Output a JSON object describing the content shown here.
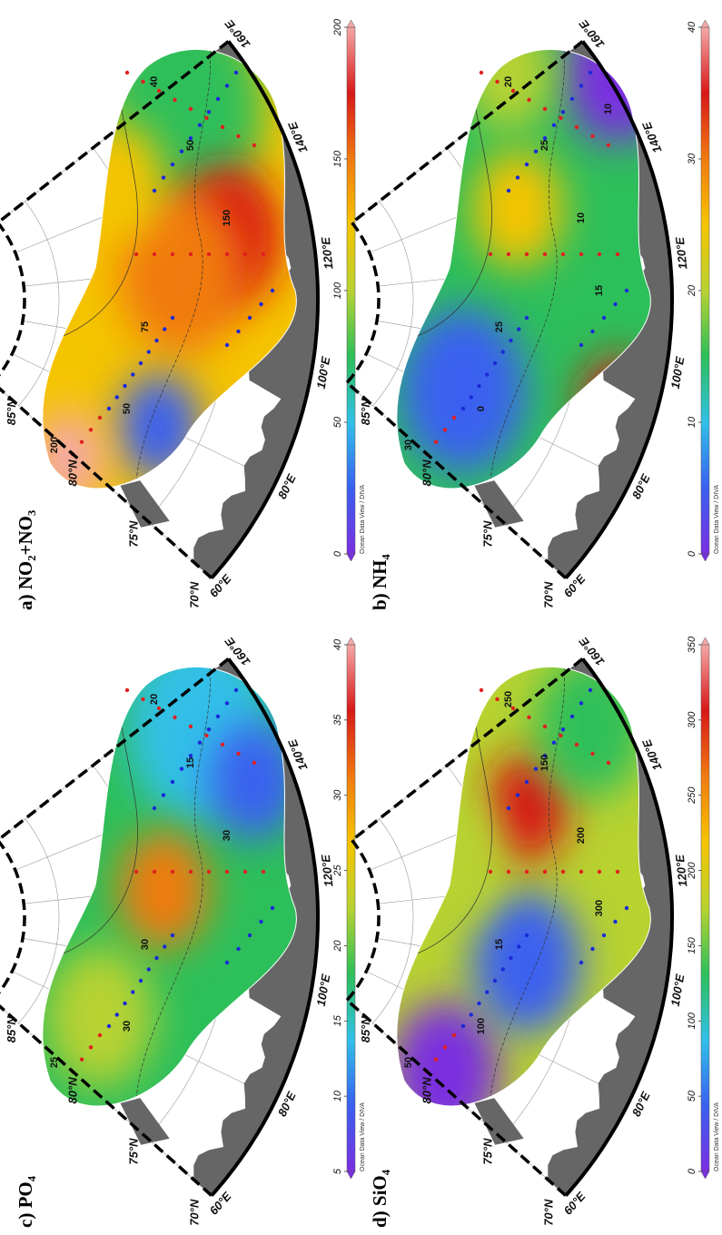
{
  "panels": [
    {
      "title": "a) NO₂+NO₃",
      "colorbar": {
        "range": [
          0,
          200
        ],
        "ticks": [
          0,
          50,
          100,
          150,
          200
        ],
        "label": "Ocean Data View / DIVA"
      },
      "contour_labels": [
        "200",
        "50",
        "75",
        "150",
        "50",
        "40"
      ]
    },
    {
      "title": "b) NH₄",
      "colorbar": {
        "range": [
          0,
          40
        ],
        "ticks": [
          0,
          10,
          20,
          30,
          40
        ],
        "label": "Ocean Data View / DIVA"
      },
      "contour_labels": [
        "30",
        "0",
        "25",
        "10",
        "25",
        "20",
        "15",
        "10"
      ]
    },
    {
      "title": "c) PO₄",
      "colorbar": {
        "range": [
          5,
          40
        ],
        "ticks": [
          5,
          10,
          15,
          20,
          25,
          30,
          35,
          40
        ],
        "label": "Ocean Data View / DIVA"
      },
      "contour_labels": [
        "25",
        "30",
        "30",
        "30",
        "15",
        "20"
      ]
    },
    {
      "title": "d) SiO₄",
      "colorbar": {
        "range": [
          0,
          350
        ],
        "ticks": [
          0,
          50,
          100,
          150,
          200,
          250,
          300,
          350
        ],
        "label": "Ocean Data View / DIVA"
      },
      "contour_labels": [
        "50",
        "100",
        "15",
        "200",
        "150",
        "250",
        "300"
      ]
    }
  ],
  "latitude_labels": [
    "70°N",
    "75°N",
    "80°N",
    "85°N"
  ],
  "longitude_labels": [
    "60°E",
    "80°E",
    "100°E",
    "120°E",
    "140°E",
    "160°E"
  ],
  "colormap": [
    "#7a2fe0",
    "#3a60f0",
    "#30c0e8",
    "#2dbf5a",
    "#b8d230",
    "#f5c400",
    "#f07a10",
    "#d81818",
    "#f4a8a8"
  ]
}
